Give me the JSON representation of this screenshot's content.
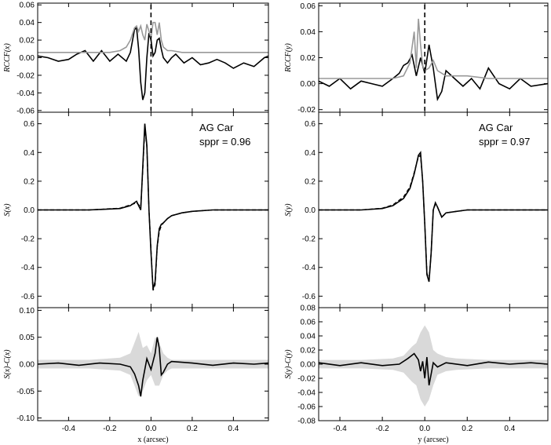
{
  "chart_data": [
    {
      "type": "line",
      "panel": "left-top",
      "ylabel": "RCCF(x)",
      "xlim": [
        -0.55,
        0.57
      ],
      "ylim": [
        -0.062,
        0.062
      ],
      "yticks": [
        -0.06,
        -0.04,
        -0.02,
        0.0,
        0.02,
        0.04,
        0.06
      ],
      "ytick_labels": [
        "-0.06",
        "-0.04",
        "-0.02",
        "0.00",
        "0.02",
        "0.04",
        "0.06"
      ],
      "xticks": [
        -0.4,
        -0.2,
        0.0,
        0.2,
        0.4
      ],
      "vline_x": 0.0,
      "series": [
        {
          "color": "#000000",
          "x": [
            -0.55,
            -0.5,
            -0.45,
            -0.4,
            -0.36,
            -0.32,
            -0.28,
            -0.24,
            -0.2,
            -0.16,
            -0.12,
            -0.1,
            -0.08,
            -0.07,
            -0.06,
            -0.05,
            -0.04,
            -0.03,
            -0.02,
            -0.01,
            0.0,
            0.01,
            0.02,
            0.03,
            0.04,
            0.05,
            0.06,
            0.08,
            0.1,
            0.12,
            0.16,
            0.2,
            0.24,
            0.28,
            0.32,
            0.36,
            0.4,
            0.45,
            0.5,
            0.55,
            0.57
          ],
          "y": [
            0.002,
            0.0,
            -0.004,
            -0.002,
            0.004,
            0.008,
            -0.004,
            0.008,
            -0.004,
            0.004,
            -0.004,
            0.006,
            0.032,
            0.034,
            0.01,
            -0.028,
            -0.048,
            -0.04,
            0.0,
            0.028,
            0.02,
            0.002,
            0.006,
            0.02,
            0.022,
            0.01,
            0.0,
            -0.006,
            0.0,
            0.004,
            -0.006,
            0.0,
            -0.008,
            -0.006,
            -0.002,
            -0.006,
            -0.012,
            -0.006,
            -0.01,
            0.0,
            0.002
          ]
        },
        {
          "color": "#999999",
          "x": [
            -0.55,
            -0.3,
            -0.2,
            -0.15,
            -0.12,
            -0.1,
            -0.08,
            -0.07,
            -0.06,
            -0.05,
            -0.04,
            -0.03,
            -0.02,
            -0.01,
            0.0,
            0.01,
            0.02,
            0.03,
            0.04,
            0.05,
            0.06,
            0.08,
            0.1,
            0.15,
            0.2,
            0.3,
            0.57
          ],
          "y": [
            0.006,
            0.006,
            0.006,
            0.008,
            0.012,
            0.02,
            0.034,
            0.036,
            0.03,
            0.036,
            0.026,
            0.02,
            0.038,
            0.03,
            0.022,
            0.04,
            0.04,
            0.026,
            0.04,
            0.02,
            0.012,
            0.008,
            0.008,
            0.006,
            0.006,
            0.006,
            0.006
          ]
        }
      ]
    },
    {
      "type": "line",
      "panel": "left-middle",
      "ylabel": "S(x)",
      "annotation": [
        "AG Car",
        "sppr = 0.96"
      ],
      "xlim": [
        -0.55,
        0.57
      ],
      "ylim": [
        -0.68,
        0.68
      ],
      "yticks": [
        -0.6,
        -0.4,
        -0.2,
        0.0,
        0.2,
        0.4,
        0.6
      ],
      "ytick_labels": [
        "-0.6",
        "-0.4",
        "-0.2",
        "0.0",
        "0.2",
        "0.4",
        "0.6"
      ],
      "xticks": [
        -0.4,
        -0.2,
        0.0,
        0.2,
        0.4
      ],
      "series": [
        {
          "color": "#000000",
          "x": [
            -0.55,
            -0.3,
            -0.15,
            -0.1,
            -0.07,
            -0.05,
            -0.04,
            -0.03,
            -0.02,
            -0.01,
            0.0,
            0.01,
            0.02,
            0.03,
            0.04,
            0.05,
            0.06,
            0.08,
            0.1,
            0.15,
            0.2,
            0.3,
            0.4,
            0.57
          ],
          "y": [
            0.0,
            0.0,
            0.01,
            0.03,
            0.06,
            0.0,
            0.3,
            0.6,
            0.45,
            0.0,
            -0.3,
            -0.55,
            -0.5,
            -0.25,
            -0.13,
            -0.1,
            -0.09,
            -0.06,
            -0.04,
            -0.02,
            -0.01,
            0.0,
            0.0,
            0.0
          ]
        },
        {
          "color": "#000000",
          "dash": true,
          "x": [
            -0.55,
            -0.3,
            -0.15,
            -0.1,
            -0.07,
            -0.05,
            -0.04,
            -0.03,
            -0.02,
            -0.01,
            0.0,
            0.01,
            0.02,
            0.03,
            0.04,
            0.05,
            0.06,
            0.08,
            0.1,
            0.15,
            0.2,
            0.3,
            0.4,
            0.57
          ],
          "y": [
            0.0,
            0.0,
            0.012,
            0.035,
            0.05,
            0.02,
            0.28,
            0.57,
            0.44,
            0.0,
            -0.28,
            -0.56,
            -0.52,
            -0.26,
            -0.15,
            -0.11,
            -0.09,
            -0.06,
            -0.04,
            -0.02,
            -0.01,
            0.0,
            0.0,
            0.0
          ]
        }
      ]
    },
    {
      "type": "line",
      "panel": "left-bottom",
      "ylabel": "S(x)-C(x)",
      "xlabel": "x (arcsec)",
      "xlim": [
        -0.55,
        0.57
      ],
      "ylim": [
        -0.105,
        0.105
      ],
      "yticks": [
        -0.1,
        -0.05,
        0.0,
        0.05,
        0.1
      ],
      "ytick_labels": [
        "-0.10",
        "-0.05",
        "0.00",
        "0.05",
        "0.10"
      ],
      "xticks": [
        -0.4,
        -0.2,
        0.0,
        0.2,
        0.4
      ],
      "xtick_labels": [
        "-0.4",
        "-0.2",
        "0.0",
        "0.2",
        "0.4"
      ],
      "band": {
        "color": "#d9d9d9",
        "x": [
          -0.55,
          -0.3,
          -0.15,
          -0.1,
          -0.08,
          -0.06,
          -0.04,
          -0.02,
          0.0,
          0.02,
          0.04,
          0.06,
          0.08,
          0.1,
          0.15,
          0.3,
          0.57
        ],
        "upper": [
          0.008,
          0.008,
          0.012,
          0.02,
          0.04,
          0.06,
          0.03,
          0.035,
          0.02,
          0.05,
          0.04,
          0.02,
          0.012,
          0.008,
          0.008,
          0.008,
          0.008
        ],
        "lower": [
          -0.008,
          -0.008,
          -0.012,
          -0.02,
          -0.04,
          -0.06,
          -0.05,
          -0.03,
          -0.02,
          -0.04,
          -0.04,
          -0.02,
          -0.012,
          -0.008,
          -0.008,
          -0.008,
          -0.008
        ]
      },
      "series": [
        {
          "color": "#000000",
          "x": [
            -0.55,
            -0.45,
            -0.35,
            -0.25,
            -0.15,
            -0.1,
            -0.08,
            -0.06,
            -0.05,
            -0.04,
            -0.02,
            0.0,
            0.02,
            0.03,
            0.04,
            0.05,
            0.06,
            0.08,
            0.1,
            0.2,
            0.3,
            0.4,
            0.5,
            0.57
          ],
          "y": [
            0.0,
            0.002,
            -0.002,
            0.002,
            0.0,
            -0.005,
            -0.018,
            -0.04,
            -0.06,
            -0.03,
            0.01,
            -0.01,
            0.02,
            0.05,
            0.03,
            -0.02,
            -0.015,
            0.0,
            0.005,
            0.002,
            -0.002,
            0.002,
            0.0,
            0.002
          ]
        }
      ]
    },
    {
      "type": "line",
      "panel": "right-top",
      "ylabel": "RCCF(y)",
      "xlim": [
        -0.5,
        0.58
      ],
      "ylim": [
        -0.022,
        0.062
      ],
      "yticks": [
        -0.02,
        0.0,
        0.02,
        0.04,
        0.06
      ],
      "ytick_labels": [
        "-0.02",
        "0.00",
        "0.02",
        "0.04",
        "0.06"
      ],
      "xticks": [
        -0.4,
        -0.2,
        0.0,
        0.2,
        0.4
      ],
      "vline_x": 0.0,
      "series": [
        {
          "color": "#000000",
          "x": [
            -0.5,
            -0.45,
            -0.4,
            -0.35,
            -0.3,
            -0.25,
            -0.2,
            -0.15,
            -0.12,
            -0.1,
            -0.08,
            -0.06,
            -0.04,
            -0.02,
            0.0,
            0.02,
            0.04,
            0.06,
            0.08,
            0.1,
            0.14,
            0.18,
            0.22,
            0.26,
            0.3,
            0.35,
            0.4,
            0.45,
            0.5,
            0.58
          ],
          "y": [
            0.002,
            -0.002,
            0.004,
            -0.004,
            0.002,
            0.0,
            -0.002,
            0.004,
            0.008,
            0.014,
            0.016,
            0.022,
            0.006,
            0.02,
            0.008,
            0.03,
            0.012,
            -0.012,
            -0.006,
            0.01,
            0.004,
            -0.002,
            0.004,
            -0.004,
            0.012,
            0.0,
            -0.004,
            0.004,
            -0.002,
            0.0
          ]
        },
        {
          "color": "#999999",
          "x": [
            -0.5,
            -0.3,
            -0.15,
            -0.1,
            -0.07,
            -0.05,
            -0.04,
            -0.03,
            -0.02,
            -0.01,
            0.0,
            0.02,
            0.04,
            0.06,
            0.1,
            0.2,
            0.3,
            0.4,
            0.58
          ],
          "y": [
            0.004,
            0.004,
            0.004,
            0.006,
            0.016,
            0.04,
            0.012,
            0.05,
            0.03,
            0.014,
            0.01,
            0.012,
            0.018,
            0.01,
            0.006,
            0.006,
            0.004,
            0.004,
            0.004
          ]
        }
      ]
    },
    {
      "type": "line",
      "panel": "right-middle",
      "ylabel": "S(y)",
      "annotation": [
        "AG Car",
        "sppr = 0.97"
      ],
      "xlim": [
        -0.5,
        0.58
      ],
      "ylim": [
        -0.68,
        0.68
      ],
      "yticks": [
        -0.6,
        -0.4,
        -0.2,
        0.0,
        0.2,
        0.4,
        0.6
      ],
      "ytick_labels": [
        "-0.6",
        "-0.4",
        "-0.2",
        "0.0",
        "0.2",
        "0.4",
        "0.6"
      ],
      "xticks": [
        -0.4,
        -0.2,
        0.0,
        0.2,
        0.4
      ],
      "series": [
        {
          "color": "#000000",
          "x": [
            -0.5,
            -0.3,
            -0.2,
            -0.15,
            -0.1,
            -0.07,
            -0.05,
            -0.03,
            -0.02,
            -0.01,
            0.0,
            0.01,
            0.02,
            0.03,
            0.04,
            0.05,
            0.06,
            0.08,
            0.1,
            0.15,
            0.2,
            0.3,
            0.4,
            0.58
          ],
          "y": [
            0.0,
            0.0,
            0.01,
            0.03,
            0.08,
            0.15,
            0.25,
            0.38,
            0.4,
            0.2,
            -0.1,
            -0.45,
            -0.5,
            -0.3,
            0.0,
            0.05,
            0.02,
            -0.05,
            -0.02,
            -0.01,
            0.0,
            0.0,
            0.0,
            0.0
          ]
        },
        {
          "color": "#000000",
          "dash": true,
          "x": [
            -0.5,
            -0.3,
            -0.2,
            -0.15,
            -0.1,
            -0.07,
            -0.05,
            -0.03,
            -0.02,
            -0.01,
            0.0,
            0.01,
            0.02,
            0.03,
            0.04,
            0.05,
            0.06,
            0.08,
            0.1,
            0.15,
            0.2,
            0.3,
            0.4,
            0.58
          ],
          "y": [
            0.0,
            0.0,
            0.012,
            0.035,
            0.09,
            0.16,
            0.26,
            0.37,
            0.38,
            0.2,
            -0.1,
            -0.44,
            -0.49,
            -0.3,
            0.0,
            0.04,
            0.02,
            -0.05,
            -0.02,
            -0.01,
            0.0,
            0.0,
            0.0,
            0.0
          ]
        }
      ]
    },
    {
      "type": "line",
      "panel": "right-bottom",
      "ylabel": "S(y)-C(y)",
      "xlabel": "y (arcsec)",
      "xlim": [
        -0.5,
        0.58
      ],
      "ylim": [
        -0.08,
        0.08
      ],
      "yticks": [
        -0.08,
        -0.06,
        -0.04,
        -0.02,
        0.0,
        0.02,
        0.04,
        0.06,
        0.08
      ],
      "ytick_labels": [
        "-0.08",
        "-0.06",
        "-0.04",
        "-0.02",
        "0.00",
        "0.02",
        "0.04",
        "0.06",
        "0.08"
      ],
      "xticks": [
        -0.4,
        -0.2,
        0.0,
        0.2,
        0.4
      ],
      "xtick_labels": [
        "-0.4",
        "-0.2",
        "0.0",
        "0.2",
        "0.4"
      ],
      "band": {
        "color": "#d9d9d9",
        "x": [
          -0.5,
          -0.3,
          -0.15,
          -0.1,
          -0.06,
          -0.04,
          -0.02,
          0.0,
          0.02,
          0.04,
          0.06,
          0.1,
          0.15,
          0.3,
          0.58
        ],
        "upper": [
          0.006,
          0.006,
          0.008,
          0.012,
          0.025,
          0.03,
          0.045,
          0.055,
          0.045,
          0.02,
          0.015,
          0.01,
          0.008,
          0.006,
          0.006
        ],
        "lower": [
          -0.006,
          -0.006,
          -0.008,
          -0.012,
          -0.025,
          -0.03,
          -0.05,
          -0.06,
          -0.05,
          -0.03,
          -0.015,
          -0.01,
          -0.008,
          -0.006,
          -0.006
        ]
      },
      "series": [
        {
          "color": "#000000",
          "x": [
            -0.5,
            -0.4,
            -0.3,
            -0.2,
            -0.12,
            -0.08,
            -0.05,
            -0.03,
            -0.02,
            -0.01,
            0.0,
            0.01,
            0.02,
            0.03,
            0.04,
            0.06,
            0.1,
            0.2,
            0.3,
            0.4,
            0.5,
            0.58
          ],
          "y": [
            0.002,
            -0.002,
            0.002,
            -0.002,
            0.0,
            0.008,
            0.015,
            0.006,
            -0.01,
            0.004,
            -0.02,
            0.01,
            -0.03,
            -0.014,
            0.002,
            -0.004,
            0.002,
            -0.002,
            0.003,
            0.0,
            0.002,
            0.0
          ]
        }
      ]
    }
  ]
}
